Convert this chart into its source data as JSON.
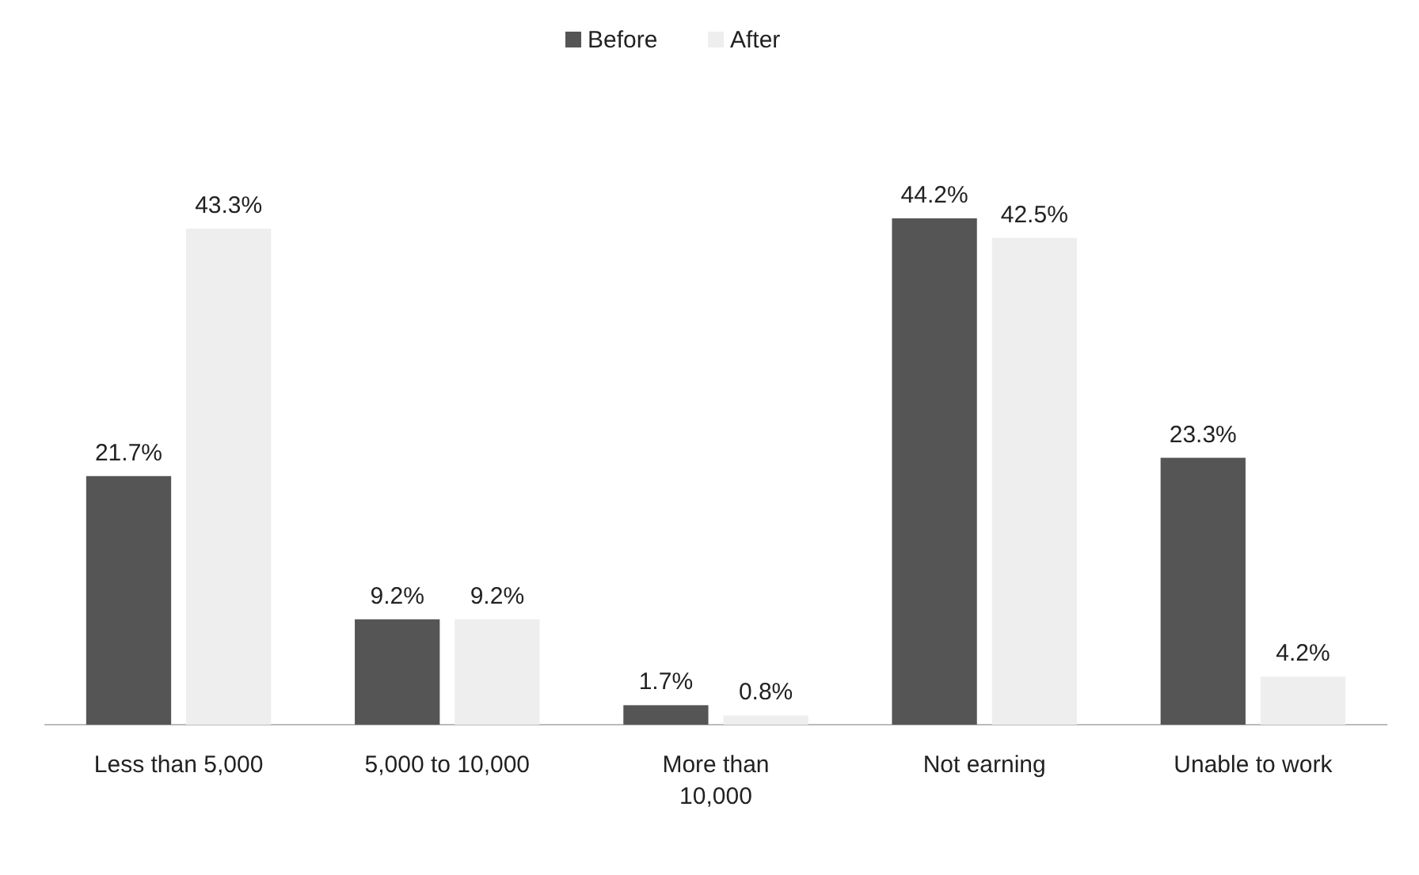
{
  "chart_data": {
    "type": "bar",
    "categories": [
      "Less than 5,000",
      "5,000 to 10,000",
      "More than 10,000",
      "Not earning",
      "Unable to work"
    ],
    "series": [
      {
        "name": "Before",
        "color": "#555555",
        "values": [
          21.7,
          9.2,
          1.7,
          44.2,
          23.3
        ],
        "value_labels": [
          "21.7%",
          "9.2%",
          "1.7%",
          "44.2%",
          "23.3%"
        ]
      },
      {
        "name": "After",
        "color": "#eeeeee",
        "values": [
          43.3,
          9.2,
          0.8,
          42.5,
          4.2
        ],
        "value_labels": [
          "43.3%",
          "9.2%",
          "0.8%",
          "42.5%",
          "4.2%"
        ]
      }
    ],
    "legend": "top"
  }
}
